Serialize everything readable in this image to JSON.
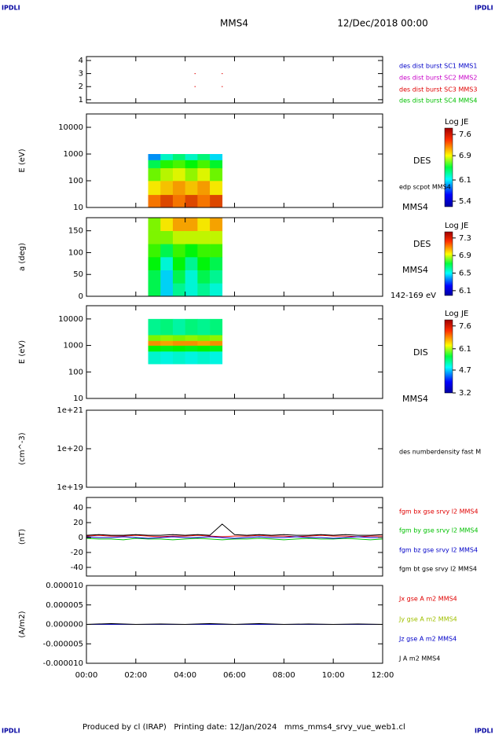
{
  "header": {
    "left_logo": "IPDLI",
    "right_logo": "IPDLI",
    "title": "MMS4",
    "date": "12/Dec/2018 00:00"
  },
  "footer": {
    "text": "Produced by cl (IRAP)   Printing date: 12/Jan/2024   mms_mms4_srvy_vue_web1.cl",
    "left_logo": "IPDLI",
    "right_logo": "IPDLI"
  },
  "time_axis": {
    "xlim": [
      0,
      12
    ],
    "xticks": [
      {
        "value": 0,
        "label": "00:00"
      },
      {
        "value": 2,
        "label": "02:00"
      },
      {
        "value": 4,
        "label": "04:00"
      },
      {
        "value": 6,
        "label": "06:00"
      },
      {
        "value": 8,
        "label": "08:00"
      },
      {
        "value": 10,
        "label": "10:00"
      },
      {
        "value": 12,
        "label": "12:00"
      }
    ]
  },
  "chart_data": [
    {
      "type": "scatter",
      "ylim": [
        0.75,
        4.3
      ],
      "yticks": [
        1,
        2,
        3,
        4
      ],
      "series": [
        {
          "name": "des dist burst SC1 MMS1",
          "color": "#0000c8",
          "x": [],
          "values": []
        },
        {
          "name": "des dist burst SC2 MMS2",
          "color": "#c800c8",
          "x": [],
          "values": []
        },
        {
          "name": "des dist burst SC3 MMS3",
          "color": "#e00000",
          "x": [
            4.4,
            4.4,
            5.5,
            5.5
          ],
          "values": [
            3,
            2,
            3,
            2
          ]
        },
        {
          "name": "des dist burst SC4 MMS4",
          "color": "#00c000",
          "x": [],
          "values": []
        }
      ]
    },
    {
      "type": "heatmap",
      "ylabel": "E (eV)",
      "log": true,
      "ylim": [
        10,
        31623
      ],
      "yticks": [
        10,
        100,
        1000,
        10000
      ],
      "x_edges": [
        2.5,
        3,
        3.5,
        4,
        4.5,
        5,
        5.5
      ],
      "y_edges": [
        10,
        30,
        100,
        300,
        600,
        1000
      ],
      "z": [
        [
          7.5,
          7.6,
          7.5,
          7.6,
          7.5,
          7.6
        ],
        [
          7.2,
          7.3,
          7.4,
          7.3,
          7.4,
          7.2
        ],
        [
          6.8,
          7.0,
          7.1,
          6.9,
          7.1,
          6.8
        ],
        [
          6.3,
          6.6,
          6.7,
          6.5,
          6.7,
          6.4
        ],
        [
          5.6,
          6.0,
          6.2,
          6.0,
          6.2,
          5.8
        ]
      ],
      "colorbar": {
        "title": "Log JE",
        "lim": [
          5.22,
          7.81
        ],
        "ticks": [
          7.6,
          6.9,
          6.1,
          5.4
        ]
      },
      "annotations": [
        "DES",
        "edp scpot MMS4",
        "MMS4"
      ]
    },
    {
      "type": "heatmap",
      "ylabel": "a (deg)",
      "log": false,
      "ylim": [
        0,
        180
      ],
      "yticks": [
        0,
        50,
        100,
        150
      ],
      "x_edges": [
        2.5,
        3,
        3.5,
        4,
        4.5,
        5,
        5.5
      ],
      "y_edges": [
        0,
        30,
        60,
        90,
        120,
        150,
        180
      ],
      "z": [
        [
          6.6,
          6.3,
          6.5,
          6.4,
          6.5,
          6.4
        ],
        [
          6.6,
          6.3,
          6.6,
          6.4,
          6.6,
          6.5
        ],
        [
          6.7,
          6.4,
          6.7,
          6.5,
          6.7,
          6.6
        ],
        [
          6.8,
          6.6,
          6.8,
          6.7,
          6.8,
          6.8
        ],
        [
          6.9,
          6.9,
          7.0,
          7.0,
          7.0,
          7.0
        ],
        [
          6.9,
          7.1,
          7.2,
          7.2,
          7.1,
          7.2
        ]
      ],
      "colorbar": {
        "title": "Log JE",
        "lim": [
          5.99,
          7.44
        ],
        "ticks": [
          7.3,
          6.9,
          6.5,
          6.1
        ]
      },
      "annotations": [
        "DES",
        "MMS4",
        "142-169 eV"
      ]
    },
    {
      "type": "heatmap",
      "ylabel": "E (eV)",
      "log": true,
      "ylim": [
        10,
        31623
      ],
      "yticks": [
        10,
        100,
        1000,
        10000
      ],
      "x_edges": [
        2.5,
        3,
        3.5,
        4,
        4.5,
        5,
        5.5
      ],
      "y_edges": [
        200,
        600,
        1000,
        1500,
        2500,
        10000
      ],
      "z": [
        [
          4.6,
          4.5,
          4.6,
          4.5,
          4.6,
          4.5
        ],
        [
          5.6,
          5.5,
          5.6,
          5.5,
          5.6,
          5.5
        ],
        [
          7.3,
          7.2,
          7.3,
          7.3,
          7.2,
          7.3
        ],
        [
          6.2,
          6.3,
          6.2,
          6.3,
          6.2,
          6.3
        ],
        [
          4.9,
          5.0,
          4.8,
          5.0,
          4.9,
          5.0
        ]
      ],
      "colorbar": {
        "title": "Log JE",
        "lim": [
          3.2,
          8.0
        ],
        "ticks": [
          7.6,
          6.1,
          4.7,
          3.2
        ]
      },
      "annotations": [
        "DIS",
        "MMS4"
      ]
    },
    {
      "type": "line",
      "ylabel": "(cm^-3)",
      "log": true,
      "ylim": [
        1e+19,
        1e+21
      ],
      "yticks": [
        {
          "value": 1e+19,
          "label": "1e+19"
        },
        {
          "value": 1e+20,
          "label": "1e+20"
        },
        {
          "value": 1e+21,
          "label": "1e+21"
        }
      ],
      "series": [],
      "annotations": [
        "des numberdensity fast M"
      ]
    },
    {
      "type": "line",
      "ylabel": "(nT)",
      "log": false,
      "ylim": [
        -51.6,
        53.7
      ],
      "yticks": [
        -40,
        -20,
        0,
        20,
        40
      ],
      "series": [
        {
          "name": "fgm bx gse srvy l2 MMS4",
          "color": "#e00000",
          "x": [
            0,
            0.5,
            1,
            1.5,
            2,
            2.5,
            3,
            3.5,
            4,
            4.5,
            5,
            5.5,
            6,
            6.5,
            7,
            7.5,
            8,
            8.5,
            9,
            9.5,
            10,
            10.5,
            11,
            11.5,
            12
          ],
          "values": [
            2,
            3,
            2,
            2,
            3,
            2,
            1,
            2,
            2,
            3,
            2,
            1,
            2,
            2,
            3,
            2,
            2,
            1,
            2,
            3,
            2,
            2,
            1,
            2,
            2
          ]
        },
        {
          "name": "fgm by gse srvy l2 MMS4",
          "color": "#00c000",
          "x": [
            0,
            0.5,
            1,
            1.5,
            2,
            2.5,
            3,
            3.5,
            4,
            4.5,
            5,
            5.5,
            6,
            6.5,
            7,
            7.5,
            8,
            8.5,
            9,
            9.5,
            10,
            10.5,
            11,
            11.5,
            12
          ],
          "values": [
            -1,
            -2,
            -2,
            -3,
            -1,
            -2,
            -2,
            -3,
            -2,
            -1,
            -2,
            -3,
            -2,
            -2,
            -1,
            -2,
            -3,
            -2,
            -1,
            -2,
            -2,
            -1,
            -2,
            -3,
            -2
          ]
        },
        {
          "name": "fgm bz gse srvy l2 MMS4",
          "color": "#0000c8",
          "x": [
            0,
            0.5,
            1,
            1.5,
            2,
            2.5,
            3,
            3.5,
            4,
            4.5,
            5,
            5.5,
            6,
            6.5,
            7,
            7.5,
            8,
            8.5,
            9,
            9.5,
            10,
            10.5,
            11,
            11.5,
            12
          ],
          "values": [
            1,
            0,
            0,
            1,
            0,
            -1,
            0,
            1,
            0,
            0,
            1,
            0,
            -1,
            0,
            1,
            0,
            0,
            1,
            0,
            0,
            -1,
            0,
            1,
            0,
            0
          ]
        },
        {
          "name": "fgm bt gse srvy l2 MMS4",
          "color": "#000000",
          "x": [
            0,
            0.5,
            1,
            1.5,
            2,
            2.5,
            3,
            3.5,
            4,
            4.5,
            5,
            5.5,
            6,
            6.5,
            7,
            7.5,
            8,
            8.5,
            9,
            9.5,
            10,
            10.5,
            11,
            11.5,
            12
          ],
          "values": [
            3,
            4,
            3,
            3,
            4,
            3,
            3,
            4,
            3,
            4,
            3,
            18,
            4,
            3,
            4,
            3,
            4,
            3,
            3,
            4,
            3,
            4,
            3,
            3,
            4
          ]
        }
      ]
    },
    {
      "type": "line",
      "ylabel": "(A/m2)",
      "log": false,
      "ylim": [
        -1e-05,
        1e-05
      ],
      "yticks": [
        {
          "value": -1e-05,
          "label": "-0.000010"
        },
        -5e-06,
        {
          "value": 0,
          "label": "0.000000"
        },
        5e-06,
        {
          "value": 1e-05,
          "label": "0.000010"
        }
      ],
      "series": [
        {
          "name": "Jx gse A m2 MMS4",
          "color": "#e00000",
          "x": [
            0,
            1,
            2,
            3,
            4,
            5,
            6,
            7,
            8,
            9,
            10,
            11,
            12
          ],
          "values": [
            0,
            0,
            0,
            0,
            0,
            0,
            0,
            0,
            0,
            0,
            0,
            0,
            0
          ]
        },
        {
          "name": "Jy gse A m2 MMS4",
          "color": "#a0c000",
          "x": [
            0,
            1,
            2,
            3,
            4,
            5,
            6,
            7,
            8,
            9,
            10,
            11,
            12
          ],
          "values": [
            0,
            0,
            0,
            0,
            0,
            0,
            0,
            0,
            0,
            0,
            0,
            0,
            0
          ]
        },
        {
          "name": "Jz gse A m2 MMS4",
          "color": "#0000c8",
          "x": [
            0,
            1,
            2,
            3,
            4,
            5,
            6,
            7,
            8,
            9,
            10,
            11,
            12
          ],
          "values": [
            0,
            0,
            0,
            0,
            0,
            0,
            0,
            0,
            0,
            0,
            0,
            0,
            0
          ]
        },
        {
          "name": "J A m2 MMS4",
          "color": "#000000",
          "x": [
            0,
            1,
            2,
            3,
            4,
            5,
            6,
            7,
            8,
            9,
            10,
            11,
            12
          ],
          "values": [
            0,
            2e-07,
            0,
            1e-07,
            0,
            2e-07,
            0,
            2e-07,
            0,
            1e-07,
            0,
            1e-07,
            0
          ]
        }
      ]
    }
  ]
}
